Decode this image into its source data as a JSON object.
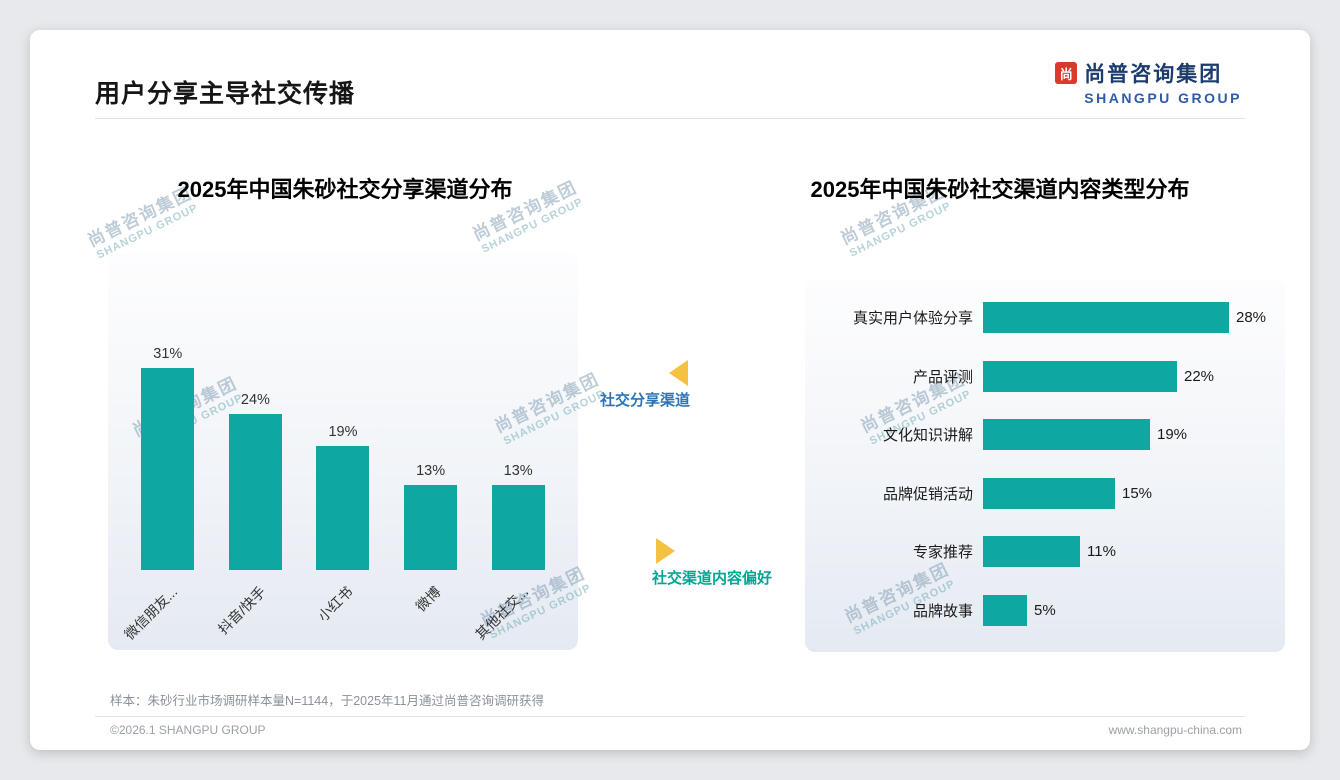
{
  "page": {
    "title": "用户分享主导社交传播",
    "sample_note": "样本：朱砂行业市场调研样本量N=1144，于2025年11月通过尚普咨询调研获得",
    "copyright": "©2026.1 SHANGPU GROUP",
    "website": "www.shangpu-china.com"
  },
  "logo": {
    "mark": "尚",
    "cn": "尚普咨询集团",
    "en": "SHANGPU GROUP"
  },
  "watermark": {
    "cn": "尚普咨询集团",
    "en": "SHANGPU GROUP"
  },
  "annotations": {
    "share_channels": "社交分享渠道",
    "content_preference": "社交渠道内容偏好"
  },
  "colors": {
    "bar_teal": "#0FA8A1",
    "annotation_blue": "#2E74B5",
    "annotation_teal": "#00A693",
    "arrow_yellow": "#F5C142",
    "logo_navy": "#1C3B6E",
    "logo_blue": "#2D5CA8",
    "logo_red": "#D93A2B"
  },
  "chart_data": [
    {
      "type": "bar",
      "orientation": "vertical",
      "title": "2025年中国朱砂社交分享渠道分布",
      "categories": [
        "微信朋友...",
        "抖音/快手",
        "小红书",
        "微博",
        "其他社交..."
      ],
      "values": [
        31,
        24,
        19,
        13,
        13
      ],
      "value_labels": [
        "31%",
        "24%",
        "19%",
        "13%",
        "13%"
      ],
      "unit": "%",
      "ylim": [
        0,
        35
      ],
      "grid": false,
      "legend": false
    },
    {
      "type": "bar",
      "orientation": "horizontal",
      "title": "2025年中国朱砂社交渠道内容类型分布",
      "categories": [
        "真实用户体验分享",
        "产品评测",
        "文化知识讲解",
        "品牌促销活动",
        "专家推荐",
        "品牌故事"
      ],
      "values": [
        28,
        22,
        19,
        15,
        11,
        5
      ],
      "value_labels": [
        "28%",
        "22%",
        "19%",
        "15%",
        "11%",
        "5%"
      ],
      "unit": "%",
      "xlim": [
        0,
        30
      ],
      "grid": false,
      "legend": false
    }
  ]
}
